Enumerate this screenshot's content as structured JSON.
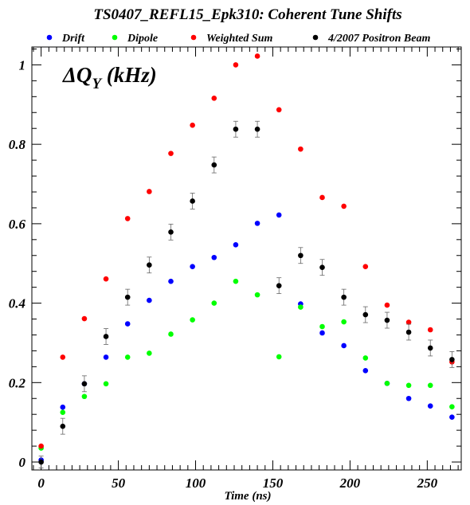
{
  "chart_data": {
    "type": "scatter",
    "title": "TS0407_REFL15_Epk310: Coherent Tune Shifts",
    "xlabel": "Time (ns)",
    "ylabel": "",
    "annotation": "ΔQ",
    "annotation_sub": "Y",
    "annotation_unit": " (kHz)",
    "xlim": [
      -6,
      272
    ],
    "ylim": [
      -0.02,
      1.045
    ],
    "xticks": [
      0,
      50,
      100,
      150,
      200,
      250
    ],
    "yticks": [
      0,
      0.2,
      0.4,
      0.6,
      0.8,
      1
    ],
    "ytick_labels": [
      "0",
      "0.2",
      "0.4",
      "0.6",
      "0.8",
      "1"
    ],
    "legend_position": "top",
    "series": [
      {
        "name": "Drift",
        "color": "#0000ff",
        "x": [
          0,
          14,
          28,
          42,
          56,
          70,
          84,
          98,
          112,
          126,
          140,
          154,
          168,
          182,
          196,
          210,
          224,
          238,
          252,
          266
        ],
        "y": [
          0.005,
          0.138,
          0.197,
          0.264,
          0.348,
          0.407,
          0.455,
          0.492,
          0.515,
          0.547,
          0.601,
          0.622,
          0.398,
          0.325,
          0.293,
          0.23,
          0.198,
          0.16,
          0.141,
          0.113
        ]
      },
      {
        "name": "Dipole",
        "color": "#00ff00",
        "x": [
          0,
          14,
          28,
          42,
          56,
          70,
          84,
          98,
          112,
          126,
          140,
          154,
          168,
          182,
          196,
          210,
          224,
          238,
          252,
          266
        ],
        "y": [
          0.035,
          0.125,
          0.165,
          0.197,
          0.264,
          0.274,
          0.322,
          0.358,
          0.4,
          0.455,
          0.421,
          0.265,
          0.39,
          0.341,
          0.353,
          0.262,
          0.198,
          0.193,
          0.193,
          0.139
        ]
      },
      {
        "name": "Weighted Sum",
        "color": "#ff0000",
        "x": [
          0,
          14,
          28,
          42,
          56,
          70,
          84,
          98,
          112,
          126,
          140,
          154,
          168,
          182,
          196,
          210,
          224,
          238,
          252,
          266
        ],
        "y": [
          0.04,
          0.264,
          0.361,
          0.461,
          0.613,
          0.681,
          0.777,
          0.848,
          0.916,
          1.0,
          1.022,
          0.887,
          0.788,
          0.666,
          0.644,
          0.492,
          0.395,
          0.352,
          0.333,
          0.252
        ]
      },
      {
        "name": "4/2007 Positron Beam",
        "color": "#000000",
        "x": [
          0,
          14,
          28,
          42,
          56,
          70,
          84,
          98,
          112,
          126,
          140,
          154,
          168,
          182,
          196,
          210,
          224,
          238,
          252,
          266
        ],
        "y": [
          0.0,
          0.09,
          0.197,
          0.316,
          0.415,
          0.496,
          0.579,
          0.657,
          0.748,
          0.838,
          0.838,
          0.444,
          0.52,
          0.49,
          0.415,
          0.371,
          0.357,
          0.327,
          0.287,
          0.258
        ],
        "yerr": [
          0.015,
          0.02,
          0.02,
          0.02,
          0.02,
          0.02,
          0.02,
          0.02,
          0.02,
          0.02,
          0.02,
          0.02,
          0.02,
          0.02,
          0.02,
          0.02,
          0.02,
          0.02,
          0.02,
          0.02
        ]
      }
    ]
  }
}
